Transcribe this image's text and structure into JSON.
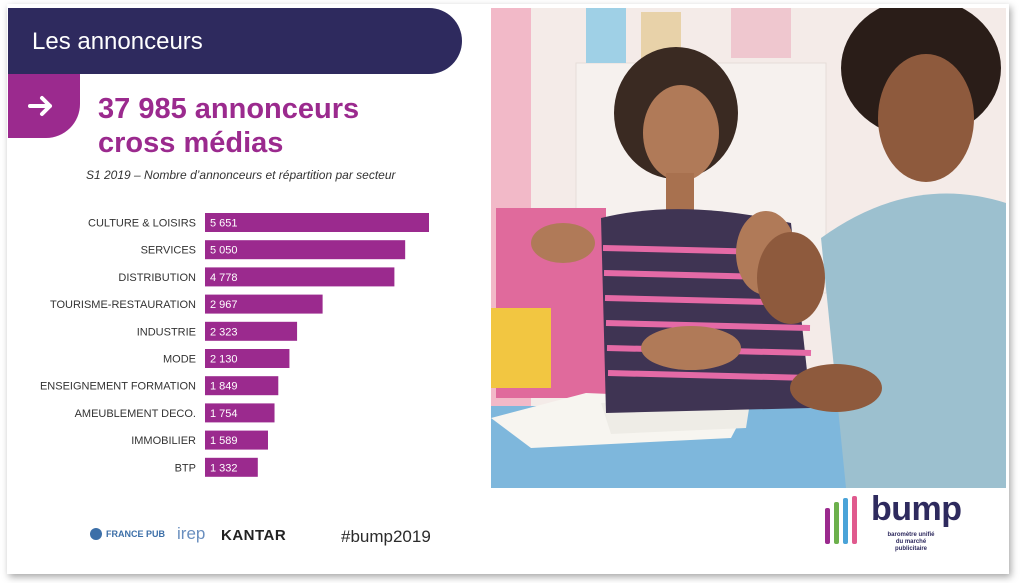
{
  "header": {
    "title": "Les annonceurs"
  },
  "headline": {
    "line1": "37 985 annonceurs",
    "line2": "cross médias"
  },
  "subtitle": "S1 2019 – Nombre d’annonceurs et répartition par secteur",
  "chart_data": {
    "type": "bar",
    "orientation": "horizontal",
    "categories": [
      "CULTURE & LOISIRS",
      "SERVICES",
      "DISTRIBUTION",
      "TOURISME-RESTAURATION",
      "INDUSTRIE",
      "MODE",
      "ENSEIGNEMENT FORMATION",
      "AMEUBLEMENT DECO.",
      "IMMOBILIER",
      "BTP"
    ],
    "values": [
      5651,
      5050,
      4778,
      2967,
      2323,
      2130,
      1849,
      1754,
      1589,
      1332
    ],
    "value_labels": [
      "5 651",
      "5 050",
      "4 778",
      "2 967",
      "2 323",
      "2 130",
      "1 849",
      "1 754",
      "1 589",
      "1 332"
    ],
    "bar_color": "#9b2a8e",
    "grid": false
  },
  "footer": {
    "logo_france_pub": "FRANCE PUB",
    "logo_irep": "irep",
    "logo_kantar": "KANTAR",
    "hashtag": "#bump2019"
  },
  "bump_logo": {
    "word": "bump",
    "tagline_1": "baromètre unifié",
    "tagline_2": "du marché publicitaire"
  },
  "colors": {
    "header_bg": "#2e2a5e",
    "accent": "#9b2a8e",
    "text": "#333333"
  },
  "photo": {
    "icon": "photo-image"
  }
}
